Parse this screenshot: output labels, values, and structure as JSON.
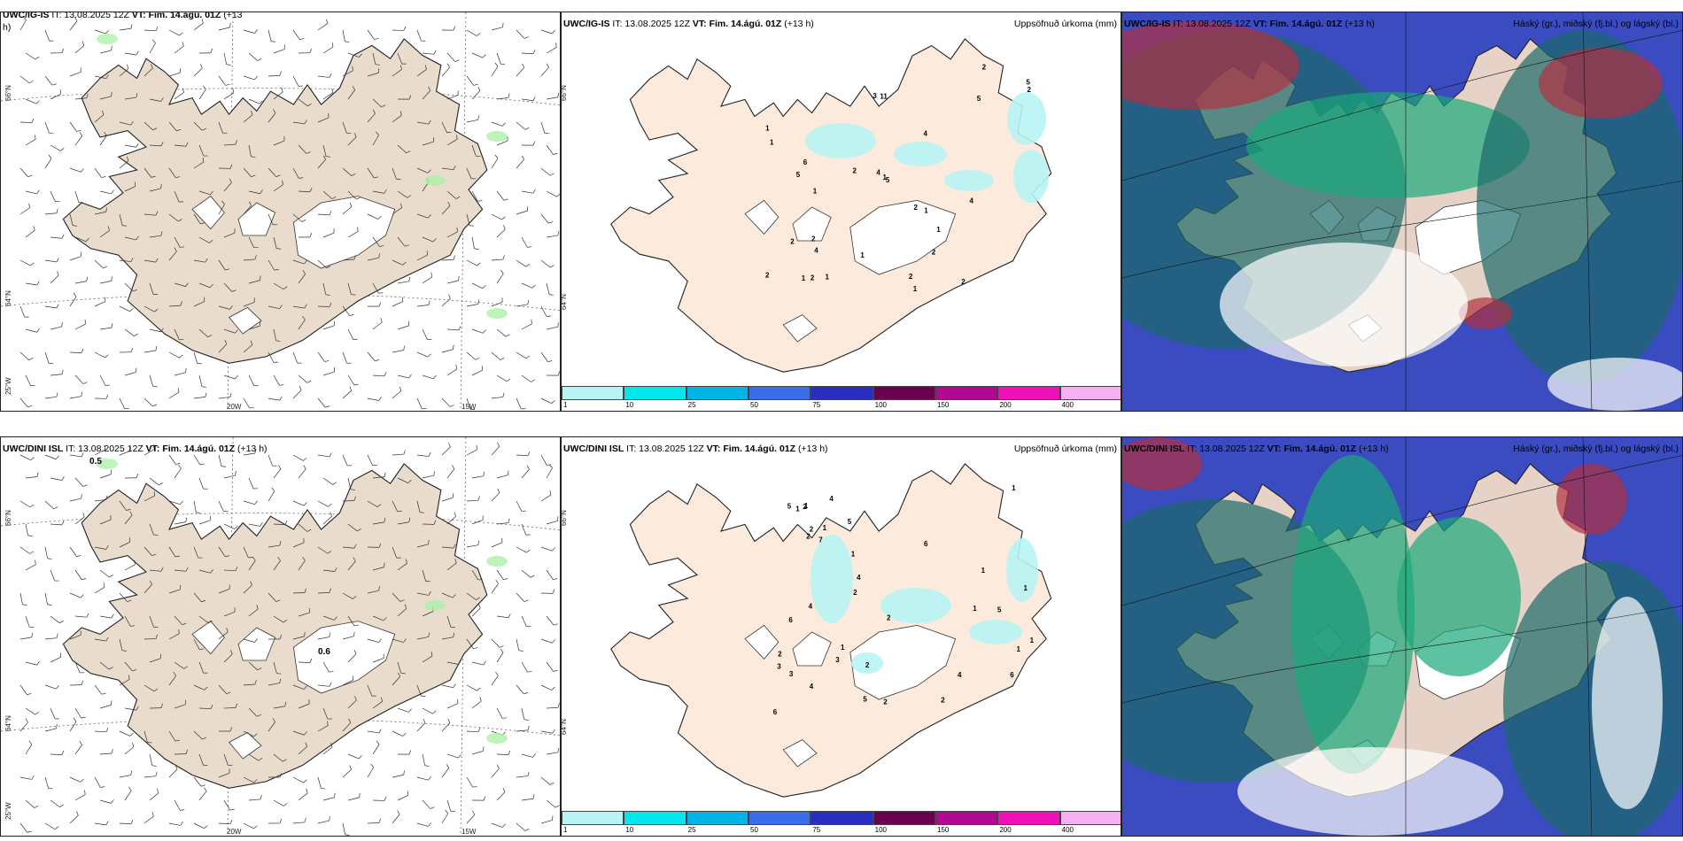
{
  "rows": [
    {
      "wind_panel": {
        "title_model": "UWC/IG-IS",
        "title_it": "IT: 13.08.2025 12Z",
        "title_vt": "VT: Fim. 14.ágú. 01Z",
        "title_lead": "(+13",
        "title_lead_cont": "h)",
        "lat_labels": [
          "66°N",
          "64°N",
          "25°W"
        ],
        "lon_labels": [
          "20W",
          "15W"
        ],
        "contour_labels": []
      },
      "precip_panel": {
        "title_model": "UWC/IG-IS",
        "title_it": "IT: 13.08.2025 12Z",
        "title_vt": "VT: Fim. 14.ágú. 01Z",
        "title_lead": "(+13 h)",
        "title_right": "Uppsöfnuð úrkoma (mm)",
        "lat_labels": [
          "66°N",
          "64°N"
        ],
        "values": [
          "2",
          "2",
          "2",
          "2",
          "1",
          "1",
          "1",
          "1",
          "1",
          "1",
          "2",
          "4",
          "5",
          "4",
          "5",
          "5",
          "6",
          "5",
          "3",
          "1",
          "2",
          "1",
          "1",
          "2",
          "2",
          "4",
          "4",
          "11",
          "2",
          "1",
          "2",
          "2"
        ]
      },
      "cloud_panel": {
        "title_model": "UWC/IG-IS",
        "title_it": "IT: 13.08.2025 12Z",
        "title_vt": "VT: Fim. 14.ágú. 01Z",
        "title_lead": "(+13 h)",
        "title_right": "Háský (gr.), miðský (fj.bl.) og lágský (bl.)"
      }
    },
    {
      "wind_panel": {
        "title_model": "UWC/DINI ISL",
        "title_it": "IT: 13.08.2025 12Z",
        "title_vt": "VT: Fim. 14.ágú. 01Z",
        "title_lead": "(+13 h)",
        "title_lead_cont": "",
        "lat_labels": [
          "66°N",
          "64°N",
          "25°W"
        ],
        "lon_labels": [
          "20W",
          "15W"
        ],
        "contour_labels": [
          "0.5",
          "0.6"
        ]
      },
      "precip_panel": {
        "title_model": "UWC/DINI ISL",
        "title_it": "IT: 13.08.2025 12Z",
        "title_vt": "VT: Fim. 14.ágú. 01Z",
        "title_lead": "(+13 h)",
        "title_right": "Uppsöfnuð úrkoma (mm)",
        "lat_labels": [
          "66°N",
          "64°N"
        ],
        "values": [
          "2",
          "1",
          "1",
          "1",
          "1",
          "2",
          "2",
          "4",
          "4",
          "7",
          "6",
          "6",
          "1",
          "1",
          "1",
          "1",
          "5",
          "5",
          "5",
          "6",
          "4",
          "5",
          "6",
          "2",
          "3",
          "3",
          "2",
          "2",
          "2",
          "1",
          "1",
          "3",
          "4",
          "4",
          "1",
          "2",
          "2"
        ]
      },
      "cloud_panel": {
        "title_model": "UWC/DINI ISL",
        "title_it": "IT: 13.08.2025 12Z",
        "title_vt": "VT: Fim. 14.ágú. 01Z",
        "title_lead": "(+13 h)",
        "title_right": "Háský (gr.), miðský (fj.bl.) og lágský (bl.)"
      }
    }
  ],
  "colorbar": {
    "labels": [
      "1",
      "10",
      "25",
      "50",
      "75",
      "100",
      "150",
      "200",
      "400"
    ],
    "colors": [
      "#b8f4f4",
      "#00e8ee",
      "#00b4e6",
      "#3a6ee8",
      "#2a2ec0",
      "#6a0050",
      "#b00890",
      "#f010b8",
      "#f4b0f0"
    ]
  },
  "colors": {
    "land_wind": "#eadccc",
    "land_precip": "#fcebdc",
    "ice": "#ffffff",
    "precip_light": "#b8f4f4",
    "cloud_high": "#3a4cc0",
    "cloud_mid": "#1aa87a",
    "cloud_low": "#1b6a6a",
    "cloud_heavy": "#b03040"
  }
}
